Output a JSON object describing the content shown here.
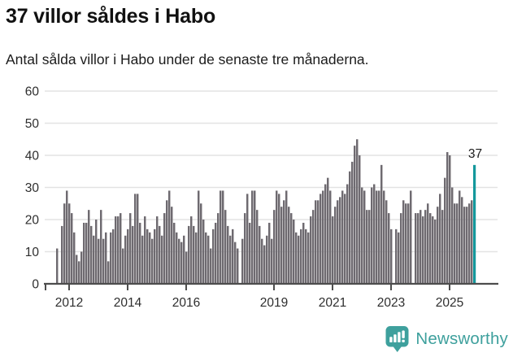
{
  "header": {
    "title": "37 villor såldes i Habo",
    "subtitle": "Antal sålda villor i Habo under de senaste tre månaderna."
  },
  "chart_data": {
    "type": "bar",
    "title": "37 villor såldes i Habo",
    "subtitle": "Antal sålda villor i Habo under de senaste tre månaderna.",
    "frequency": "monthly",
    "x_start": "2011-08",
    "x_end": "2025-11",
    "values": [
      11,
      0,
      18,
      25,
      29,
      25,
      22,
      16,
      9,
      7,
      10,
      19,
      19,
      23,
      18,
      15,
      20,
      14,
      23,
      14,
      16,
      7,
      16,
      17,
      21,
      21,
      22,
      11,
      15,
      17,
      22,
      18,
      28,
      28,
      19,
      15,
      21,
      17,
      16,
      14,
      17,
      21,
      18,
      15,
      22,
      26,
      29,
      24,
      19,
      16,
      14,
      13,
      15,
      10,
      18,
      21,
      18,
      16,
      29,
      25,
      20,
      16,
      15,
      11,
      17,
      19,
      22,
      29,
      29,
      23,
      18,
      15,
      17,
      13,
      11,
      0,
      14,
      22,
      28,
      19,
      29,
      29,
      23,
      18,
      14,
      12,
      15,
      19,
      14,
      23,
      29,
      28,
      24,
      26,
      29,
      24,
      22,
      20,
      16,
      15,
      17,
      19,
      17,
      16,
      21,
      23,
      26,
      26,
      28,
      29,
      31,
      33,
      29,
      21,
      24,
      26,
      27,
      29,
      28,
      31,
      35,
      38,
      43,
      45,
      40,
      30,
      29,
      23,
      23,
      30,
      31,
      29,
      29,
      37,
      29,
      26,
      22,
      17,
      0,
      17,
      16,
      22,
      26,
      25,
      25,
      29,
      0,
      22,
      22,
      23,
      21,
      23,
      25,
      22,
      21,
      20,
      24,
      28,
      23,
      33,
      41,
      40,
      30,
      25,
      25,
      29,
      27,
      24,
      24,
      25,
      26,
      37
    ],
    "highlight": {
      "index_from_end": 0,
      "value": 37,
      "label": "37"
    },
    "ylim": [
      0,
      60
    ],
    "y_ticks": [
      "0",
      "10",
      "20",
      "30",
      "40",
      "50",
      "60"
    ],
    "x_tick_years": [
      "2012",
      "2014",
      "2016",
      "2019",
      "2021",
      "2023",
      "2025"
    ],
    "grid": true,
    "legend": "none",
    "xlabel": "",
    "ylabel": ""
  },
  "annotation": {
    "last_value_label": "37"
  },
  "colors": {
    "bar": "#6e6a70",
    "highlight": "#14989c",
    "grid": "#e3e3e3",
    "axis": "#4d4d4d",
    "tick_text": "#2e2e2e",
    "text": "#1c1c1c",
    "brand": "#3ea09d"
  },
  "footer": {
    "brand": "Newsworthy"
  }
}
